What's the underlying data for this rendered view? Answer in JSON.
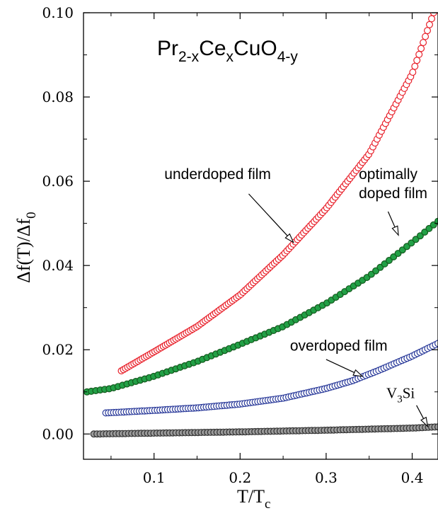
{
  "chart_data": {
    "type": "scatter",
    "title": {
      "parts": [
        {
          "t": "Pr",
          "sub": false
        },
        {
          "t": "2-x",
          "sub": true
        },
        {
          "t": "Ce",
          "sub": false
        },
        {
          "t": "x",
          "sub": true
        },
        {
          "t": "CuO",
          "sub": false
        },
        {
          "t": "4-y",
          "sub": true
        }
      ]
    },
    "xlabel": {
      "main": "T/T",
      "sub": "c"
    },
    "ylabel": {
      "main": "Δf(T)/Δf",
      "sub": "0"
    },
    "xlim": [
      0.018,
      0.43
    ],
    "ylim": [
      -0.006,
      0.1
    ],
    "xticks": [
      0.1,
      0.2,
      0.3,
      0.4
    ],
    "xtick_labels": [
      "0.1",
      "0.2",
      "0.3",
      "0.4"
    ],
    "yticks": [
      0.0,
      0.02,
      0.04,
      0.06,
      0.08,
      0.1
    ],
    "ytick_labels": [
      "0.00",
      "0.02",
      "0.04",
      "0.06",
      "0.08",
      "0.10"
    ],
    "grid": false,
    "legend": "none",
    "series": [
      {
        "key": "underdoped",
        "stroke": "#e8202a",
        "fill": "#ffffff",
        "x_start": 0.062,
        "x_end": 0.425,
        "n": 150,
        "curve_x": [
          0.062,
          0.1,
          0.15,
          0.2,
          0.25,
          0.3,
          0.35,
          0.4,
          0.425
        ],
        "curve_y": [
          0.015,
          0.0195,
          0.0255,
          0.033,
          0.0425,
          0.0535,
          0.0665,
          0.0855,
          0.1
        ]
      },
      {
        "key": "optimally",
        "stroke": "#145a1e",
        "fill": "#22a046",
        "x_start": 0.022,
        "x_end": 0.43,
        "n": 80,
        "curve_x": [
          0.022,
          0.05,
          0.1,
          0.15,
          0.2,
          0.25,
          0.3,
          0.35,
          0.4,
          0.43
        ],
        "curve_y": [
          0.01,
          0.0108,
          0.0137,
          0.0172,
          0.0213,
          0.0255,
          0.031,
          0.0375,
          0.0455,
          0.0505
        ]
      },
      {
        "key": "overdoped",
        "stroke": "#2a3a9a",
        "fill": "#ffffff",
        "x_start": 0.044,
        "x_end": 0.43,
        "n": 130,
        "curve_x": [
          0.044,
          0.1,
          0.15,
          0.2,
          0.25,
          0.3,
          0.33,
          0.36,
          0.4,
          0.43
        ],
        "curve_y": [
          0.005,
          0.0056,
          0.0062,
          0.0071,
          0.0085,
          0.0108,
          0.0126,
          0.015,
          0.0185,
          0.0215
        ]
      },
      {
        "key": "V3Si",
        "stroke": "#333333",
        "fill": "#9a9a9a",
        "x_start": 0.03,
        "x_end": 0.43,
        "n": 110,
        "curve_x": [
          0.03,
          0.1,
          0.2,
          0.3,
          0.4,
          0.43
        ],
        "curve_y": [
          0.0,
          0.0002,
          0.0005,
          0.0009,
          0.0014,
          0.0017
        ]
      }
    ],
    "annotations": [
      {
        "key": "underdoped",
        "lines": [
          "underdoped film"
        ],
        "style": "sans",
        "text_x": 0.112,
        "text_y": 0.0605,
        "arrow_from": [
          0.21,
          0.057
        ],
        "arrow_to": [
          0.262,
          0.0455
        ]
      },
      {
        "key": "optimally",
        "lines": [
          "optimally",
          "doped film"
        ],
        "style": "sans",
        "text_x": 0.338,
        "text_y": 0.0605,
        "arrow_from": [
          0.372,
          0.0528
        ],
        "arrow_to": [
          0.384,
          0.0472
        ]
      },
      {
        "key": "overdoped",
        "lines": [
          "overdoped film"
        ],
        "style": "sans",
        "text_x": 0.258,
        "text_y": 0.0198,
        "arrow_from": [
          0.3,
          0.0177
        ],
        "arrow_to": [
          0.342,
          0.0137
        ]
      },
      {
        "key": "V3Si",
        "parts": [
          {
            "t": "V",
            "sub": false
          },
          {
            "t": "3",
            "sub": true
          },
          {
            "t": "Si",
            "sub": false
          }
        ],
        "style": "serif",
        "text_x": 0.37,
        "text_y": 0.0085,
        "arrow_from": [
          0.405,
          0.0068
        ],
        "arrow_to": [
          0.418,
          0.0018
        ]
      }
    ]
  }
}
